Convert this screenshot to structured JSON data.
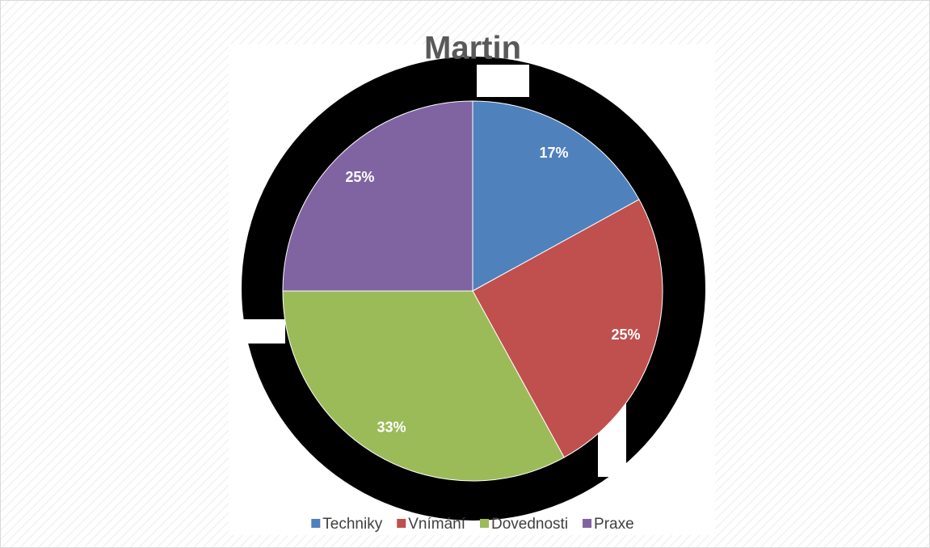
{
  "chart_data": {
    "type": "pie",
    "title": "Martin",
    "categories": [
      "Techniky",
      "Vnímání",
      "Dovednosti",
      "Praxe"
    ],
    "values": [
      17,
      25,
      33,
      25
    ],
    "value_labels": [
      "17%",
      "25%",
      "33%",
      "25%"
    ],
    "colors": [
      "#4f81bd",
      "#c0504d",
      "#9bbb59",
      "#8064a2"
    ],
    "legend": "bottom"
  }
}
